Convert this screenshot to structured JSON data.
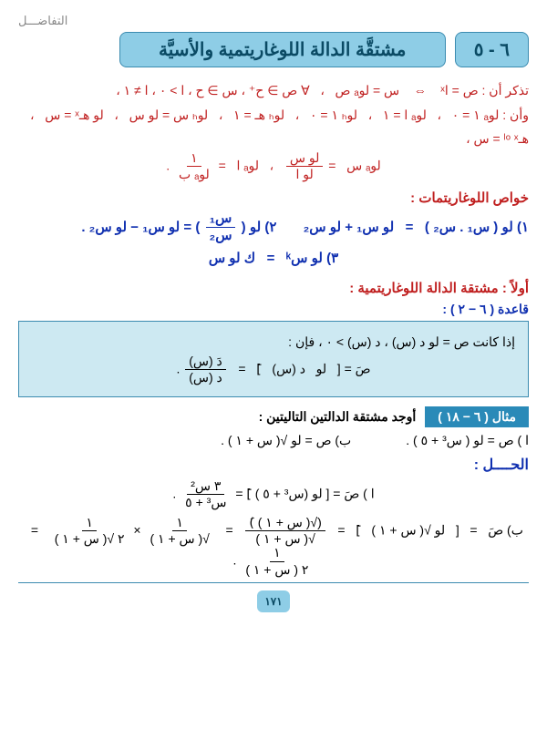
{
  "breadcrumb": "التفاضـــل",
  "chapter": {
    "num": "٦ - ٥",
    "title": "مشتقَّة الدالة اللوغاريتمية والأسيَّة"
  },
  "recall": {
    "line1": "تذكر أن :  ص = اˣ    ⇔    س = لوₐ ص   ،   ∀ ص ∋ ح⁺ ، س ∋ ح ، ا > ٠ ، ا ≠ ١ ،",
    "line2": "وأن :  لوₐ ١ = ٠   ،   لوₐ ا = ١   ،   لوₕ ١ = ٠   ،   لوₕ هـ = ١   ،   لوₕ س = لو س   ،   لو هـˣ = س   ،   هـˡᵒ ˣ = س ،"
  },
  "change_base": {
    "prefix": "لوₐ س   = ",
    "frac1_n": "لو س",
    "frac1_d": "لو ا",
    "mid": "   ،   لوₐ ا   = ",
    "frac2_n": "١",
    "frac2_d": "لوₐ ب",
    "end": "   ."
  },
  "props_title": "خواص اللوغاريتمات :",
  "props": {
    "p1": "١) لو ( س₁ . س₂ )   =   لو س₁ + لو س₂        ",
    "p2a": "٢) لو ( ",
    "p2_frac_n": "س₁",
    "p2_frac_d": "س₂",
    "p2b": " ) = لو س₁ − لو س₂  .",
    "p3": "٣) لو سᵏ   =   ك لو س"
  },
  "first_title": "أولاً  :  مشتقة الدالة اللوغاريتمية :",
  "rule_label": "قاعدة ( ٦ − ٢ ) :",
  "rule": {
    "line1": "إذا كانت  ص = لو د (س)  ،  د (س)  >  ٠  ،  فإن :",
    "line2a": "صَ = [   لو   د (س)   ]َ   =   ",
    "frac_n": "دَ (س)",
    "frac_d": "د (س)",
    "line2b": "   ."
  },
  "example": {
    "tag": "مثال ( ٦ − ١٨ )",
    "text": "أوجد مشتقة الدالتين التاليتين :"
  },
  "problems": {
    "a": "ا )  ص  =  لو ( س³ + ٥ )   .",
    "b": "ب)  ص  =  لو √‎( س + ١ )‎   ."
  },
  "solution_title": "الحــــل :",
  "solA": {
    "pre": "ا )  صَ = [ لو (س³ + ٥ ) ]َ  = ",
    "frac_n": "٣ س²",
    "frac_d": "س³ + ٥",
    "post": "   ."
  },
  "solB": {
    "pre": "ب)  صَ   =   [   لو √( س + ١ )   ]َ   =   ",
    "f1_n": "(√( س + ١ ) )َ",
    "f1_d": "√( س + ١ )",
    "eq": "   =   ",
    "f2_n": "١",
    "f2_d": "√( س + ١ )",
    "times": " × ",
    "f3_n": "١",
    "f3_d": "٢ √( س + ١ )",
    "f4_n": "١",
    "f4_d": "٢ ( س + ١ )",
    "post": "   ."
  },
  "pagenum": "١٧١"
}
